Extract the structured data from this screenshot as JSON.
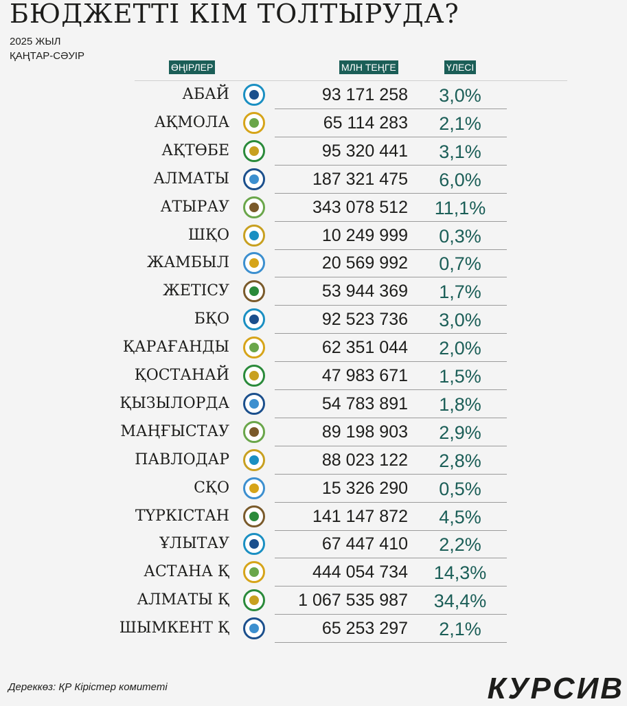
{
  "title": "БЮДЖЕТТІ КІМ ТОЛТЫРУДА?",
  "subtitle_line1": "2025 ЖЫЛ",
  "subtitle_line2": "ҚАҢТАР-СӘУІР",
  "colors": {
    "accent": "#1b5e57",
    "text": "#1d1d1b",
    "background": "#f4f4f4"
  },
  "chart_data": {
    "type": "table",
    "columns": [
      "ӨҢІРЛЕР",
      "МЛН ТЕҢГЕ",
      "ҮЛЕСІ"
    ],
    "rows": [
      {
        "region": "АБАЙ",
        "value": "93 171 258",
        "share": "3,0%",
        "logo": "abai-logo-icon"
      },
      {
        "region": "АҚМОЛА",
        "value": "65 114 283",
        "share": "2,1%",
        "logo": "aqmola-logo-icon"
      },
      {
        "region": "АҚТӨБЕ",
        "value": "95 320 441",
        "share": "3,1%",
        "logo": "aktobe-emblem-icon"
      },
      {
        "region": "АЛМАТЫ",
        "value": "187 321 475",
        "share": "6,0%",
        "logo": "almaty-region-emblem-icon"
      },
      {
        "region": "АТЫРАУ",
        "value": "343 078 512",
        "share": "11,1%",
        "logo": "atyrau-emblem-icon"
      },
      {
        "region": "ШҚО",
        "value": "10 249 999",
        "share": "0,3%",
        "logo": "east-kazakhstan-emblem-icon"
      },
      {
        "region": "ЖАМБЫЛ",
        "value": "20 569 992",
        "share": "0,7%",
        "logo": "zhambyl-emblem-icon"
      },
      {
        "region": "ЖЕТІСУ",
        "value": "53 944 369",
        "share": "1,7%",
        "logo": "zhetisu-emblem-icon"
      },
      {
        "region": "БҚО",
        "value": "92 523 736",
        "share": "3,0%",
        "logo": "west-kazakhstan-emblem-icon"
      },
      {
        "region": "ҚАРАҒАНДЫ",
        "value": "62 351 044",
        "share": "2,0%",
        "logo": "karaganda-emblem-icon"
      },
      {
        "region": "ҚОСТАНАЙ",
        "value": "47 983 671",
        "share": "1,5%",
        "logo": "kostanay-emblem-icon"
      },
      {
        "region": "ҚЫЗЫЛОРДА",
        "value": "54 783 891",
        "share": "1,8%",
        "logo": "kyzylorda-emblem-icon"
      },
      {
        "region": "МАҢҒЫСТАУ",
        "value": "89 198 903",
        "share": "2,9%",
        "logo": "mangystau-logo-icon"
      },
      {
        "region": "ПАВЛОДАР",
        "value": "88 023 122",
        "share": "2,8%",
        "logo": "pavlodar-emblem-icon"
      },
      {
        "region": "СҚО",
        "value": "15 326 290",
        "share": "0,5%",
        "logo": "north-kazakhstan-emblem-icon"
      },
      {
        "region": "ТҮРКІСТАН",
        "value": "141 147 872",
        "share": "4,5%",
        "logo": "turkistan-emblem-icon"
      },
      {
        "region": "ҰЛЫТАУ",
        "value": "67 447 410",
        "share": "2,2%",
        "logo": "ulytau-logo-icon"
      },
      {
        "region": "АСТАНА  Қ",
        "value": "444 054 734",
        "share": "14,3%",
        "logo": "astana-emblem-icon"
      },
      {
        "region": "АЛМАТЫ Қ",
        "value": "1 067 535 987",
        "share": "34,4%",
        "logo": "almaty-city-emblem-icon"
      },
      {
        "region": "ШЫМКЕНТ Қ",
        "value": "65 253 297",
        "share": "2,1%",
        "logo": "shymkent-logo-icon"
      }
    ]
  },
  "source": "Дереккөз: ҚР Кірістер комитеті",
  "brand": "КУРСИВ"
}
